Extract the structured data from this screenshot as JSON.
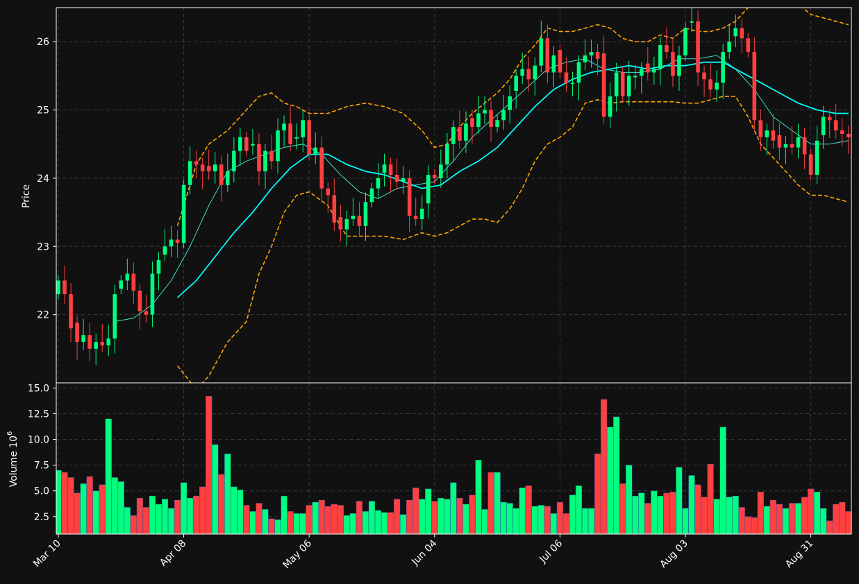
{
  "colors": {
    "background": "#111111",
    "up": "#00ff7f",
    "down": "#ff4040",
    "ma_fast": "#40e0d0",
    "ma_slow": "#00ffff",
    "bands": "#ffa500",
    "grid": "#3a3a3a",
    "frame": "#ffffff"
  },
  "chart_data": [
    {
      "type": "candlestick",
      "ylabel": "Price",
      "ylim": [
        21.0,
        26.5
      ],
      "yticks": [
        22,
        23,
        24,
        25,
        26
      ],
      "x_tick_labels": [
        "Mar 10",
        "Apr 08",
        "May 06",
        "Jun 04",
        "Jul 06",
        "Aug 03",
        "Aug 31"
      ],
      "x_tick_index": [
        0,
        20,
        40,
        60,
        80,
        100,
        120
      ],
      "x_count": 127,
      "grid": true,
      "closes": [
        22.5,
        22.3,
        21.8,
        21.6,
        21.7,
        21.5,
        21.6,
        21.55,
        21.65,
        22.3,
        22.5,
        22.6,
        22.35,
        22.05,
        22.0,
        22.6,
        22.8,
        23.0,
        23.1,
        23.05,
        23.9,
        24.25,
        24.2,
        24.1,
        24.1,
        24.2,
        23.9,
        24.1,
        24.4,
        24.6,
        24.4,
        24.5,
        24.1,
        24.4,
        24.25,
        24.7,
        24.8,
        24.5,
        24.6,
        24.85,
        24.35,
        24.45,
        23.85,
        23.75,
        23.35,
        23.25,
        23.4,
        23.45,
        23.3,
        23.65,
        23.85,
        24.0,
        24.2,
        24.05,
        23.95,
        24.0,
        23.45,
        23.4,
        23.55,
        24.05,
        24.0,
        24.2,
        24.5,
        24.75,
        24.55,
        24.8,
        24.75,
        24.95,
        25.0,
        24.75,
        24.85,
        25.0,
        25.2,
        25.5,
        25.6,
        25.45,
        25.65,
        26.05,
        25.55,
        25.8,
        25.55,
        25.4,
        25.4,
        25.7,
        25.8,
        25.85,
        25.75,
        24.9,
        25.2,
        25.55,
        25.2,
        25.5,
        25.5,
        25.6,
        25.55,
        25.6,
        25.95,
        25.85,
        25.5,
        25.8,
        26.2,
        26.3,
        25.55,
        25.45,
        25.3,
        25.4,
        25.85,
        26.0,
        26.2,
        26.05,
        25.85,
        24.85,
        24.6,
        24.7,
        24.55,
        24.45,
        24.5,
        24.45,
        24.6,
        24.35,
        24.05,
        24.55,
        24.9,
        24.85,
        24.7,
        24.65,
        24.6
      ],
      "bollinger_upper_points": [
        [
          19,
          23.3
        ],
        [
          22,
          24.2
        ],
        [
          24,
          24.5
        ],
        [
          27,
          24.7
        ],
        [
          30,
          25.0
        ],
        [
          32,
          25.2
        ],
        [
          34,
          25.25
        ],
        [
          36,
          25.1
        ],
        [
          38,
          25.05
        ],
        [
          40,
          24.95
        ],
        [
          43,
          24.95
        ],
        [
          46,
          25.05
        ],
        [
          49,
          25.1
        ],
        [
          52,
          25.05
        ],
        [
          55,
          24.95
        ],
        [
          58,
          24.7
        ],
        [
          60,
          24.45
        ],
        [
          62,
          24.5
        ],
        [
          64,
          24.75
        ],
        [
          66,
          24.95
        ],
        [
          68,
          25.1
        ],
        [
          70,
          25.25
        ],
        [
          72,
          25.45
        ],
        [
          74,
          25.75
        ],
        [
          76,
          25.95
        ],
        [
          78,
          26.2
        ],
        [
          80,
          26.15
        ],
        [
          82,
          26.15
        ],
        [
          84,
          26.2
        ],
        [
          86,
          26.25
        ],
        [
          88,
          26.2
        ],
        [
          90,
          26.05
        ],
        [
          92,
          26.0
        ],
        [
          94,
          26.0
        ],
        [
          96,
          26.1
        ],
        [
          98,
          26.05
        ],
        [
          100,
          26.2
        ],
        [
          102,
          26.15
        ],
        [
          104,
          26.15
        ],
        [
          106,
          26.2
        ],
        [
          108,
          26.3
        ],
        [
          110,
          26.5
        ],
        [
          112,
          26.6
        ],
        [
          114,
          26.7
        ],
        [
          116,
          26.7
        ],
        [
          118,
          26.55
        ],
        [
          120,
          26.4
        ],
        [
          122,
          26.35
        ],
        [
          124,
          26.3
        ],
        [
          126,
          26.25
        ]
      ],
      "bollinger_lower_points": [
        [
          19,
          21.25
        ],
        [
          22,
          20.9
        ],
        [
          24,
          21.1
        ],
        [
          27,
          21.6
        ],
        [
          30,
          21.9
        ],
        [
          32,
          22.6
        ],
        [
          34,
          23.0
        ],
        [
          36,
          23.5
        ],
        [
          38,
          23.75
        ],
        [
          40,
          23.8
        ],
        [
          43,
          23.6
        ],
        [
          46,
          23.15
        ],
        [
          49,
          23.15
        ],
        [
          52,
          23.15
        ],
        [
          55,
          23.1
        ],
        [
          58,
          23.2
        ],
        [
          60,
          23.15
        ],
        [
          62,
          23.2
        ],
        [
          64,
          23.3
        ],
        [
          66,
          23.4
        ],
        [
          68,
          23.4
        ],
        [
          70,
          23.35
        ],
        [
          72,
          23.55
        ],
        [
          74,
          23.85
        ],
        [
          76,
          24.25
        ],
        [
          78,
          24.5
        ],
        [
          80,
          24.6
        ],
        [
          82,
          24.75
        ],
        [
          84,
          25.1
        ],
        [
          86,
          25.15
        ],
        [
          88,
          25.1
        ],
        [
          90,
          25.12
        ],
        [
          92,
          25.12
        ],
        [
          94,
          25.12
        ],
        [
          96,
          25.12
        ],
        [
          98,
          25.12
        ],
        [
          100,
          25.1
        ],
        [
          102,
          25.1
        ],
        [
          104,
          25.15
        ],
        [
          106,
          25.2
        ],
        [
          108,
          25.2
        ],
        [
          110,
          24.9
        ],
        [
          112,
          24.5
        ],
        [
          114,
          24.3
        ],
        [
          116,
          24.1
        ],
        [
          118,
          23.9
        ],
        [
          120,
          23.75
        ],
        [
          122,
          23.75
        ],
        [
          124,
          23.7
        ],
        [
          126,
          23.65
        ]
      ],
      "ma_slow_points": [
        [
          19,
          22.25
        ],
        [
          22,
          22.5
        ],
        [
          25,
          22.85
        ],
        [
          28,
          23.2
        ],
        [
          31,
          23.5
        ],
        [
          34,
          23.85
        ],
        [
          37,
          24.15
        ],
        [
          40,
          24.35
        ],
        [
          43,
          24.35
        ],
        [
          46,
          24.2
        ],
        [
          49,
          24.1
        ],
        [
          52,
          24.05
        ],
        [
          55,
          23.95
        ],
        [
          58,
          23.85
        ],
        [
          61,
          23.9
        ],
        [
          64,
          24.1
        ],
        [
          67,
          24.25
        ],
        [
          70,
          24.45
        ],
        [
          73,
          24.75
        ],
        [
          76,
          25.05
        ],
        [
          79,
          25.3
        ],
        [
          82,
          25.45
        ],
        [
          85,
          25.55
        ],
        [
          88,
          25.6
        ],
        [
          91,
          25.65
        ],
        [
          94,
          25.6
        ],
        [
          97,
          25.65
        ],
        [
          100,
          25.65
        ],
        [
          103,
          25.7
        ],
        [
          106,
          25.7
        ],
        [
          109,
          25.55
        ],
        [
          112,
          25.4
        ],
        [
          115,
          25.25
        ],
        [
          118,
          25.1
        ],
        [
          121,
          25.0
        ],
        [
          124,
          24.95
        ],
        [
          126,
          24.95
        ]
      ],
      "ma_fast_points": [
        [
          9,
          21.9
        ],
        [
          12,
          21.95
        ],
        [
          15,
          22.15
        ],
        [
          18,
          22.5
        ],
        [
          21,
          23.0
        ],
        [
          24,
          23.6
        ],
        [
          27,
          24.1
        ],
        [
          30,
          24.25
        ],
        [
          33,
          24.35
        ],
        [
          36,
          24.45
        ],
        [
          39,
          24.5
        ],
        [
          42,
          24.35
        ],
        [
          45,
          24.05
        ],
        [
          48,
          23.8
        ],
        [
          51,
          23.7
        ],
        [
          54,
          23.85
        ],
        [
          57,
          23.9
        ],
        [
          60,
          23.95
        ],
        [
          63,
          24.25
        ],
        [
          66,
          24.6
        ],
        [
          69,
          24.85
        ],
        [
          72,
          25.1
        ],
        [
          75,
          25.35
        ],
        [
          78,
          25.6
        ],
        [
          81,
          25.7
        ],
        [
          84,
          25.75
        ],
        [
          87,
          25.6
        ],
        [
          90,
          25.55
        ],
        [
          93,
          25.55
        ],
        [
          96,
          25.6
        ],
        [
          99,
          25.75
        ],
        [
          102,
          25.75
        ],
        [
          105,
          25.8
        ],
        [
          108,
          25.6
        ],
        [
          111,
          25.3
        ],
        [
          114,
          24.9
        ],
        [
          117,
          24.7
        ],
        [
          120,
          24.5
        ],
        [
          123,
          24.5
        ],
        [
          126,
          24.55
        ]
      ]
    },
    {
      "type": "bar",
      "ylabel": "Volume",
      "ylabel_multiplier": "10",
      "ylabel_exponent": "6",
      "ylim": [
        0.8,
        15.5
      ],
      "yticks": [
        "2.5",
        "5.0",
        "7.5",
        "10.0",
        "12.5",
        "15.0"
      ],
      "values": [
        7.0,
        6.8,
        6.3,
        4.8,
        5.7,
        6.4,
        5.0,
        5.6,
        12.0,
        6.3,
        5.9,
        3.4,
        2.6,
        4.3,
        3.4,
        4.5,
        3.7,
        4.2,
        3.3,
        4.1,
        5.8,
        4.3,
        4.5,
        5.4,
        14.2,
        9.5,
        6.6,
        8.6,
        5.4,
        5.1,
        3.6,
        3.0,
        3.8,
        3.2,
        2.3,
        2.2,
        4.5,
        3.0,
        2.8,
        2.8,
        3.6,
        3.9,
        4.1,
        3.5,
        3.7,
        3.6,
        2.6,
        2.8,
        4.0,
        3.0,
        4.0,
        3.1,
        2.9,
        2.9,
        4.2,
        2.7,
        4.1,
        5.3,
        4.2,
        5.2,
        4.0,
        4.3,
        4.2,
        5.8,
        4.3,
        3.7,
        4.6,
        8.0,
        3.2,
        6.8,
        6.8,
        3.9,
        3.8,
        3.3,
        5.3,
        5.5,
        3.5,
        3.6,
        3.5,
        2.8,
        3.9,
        2.8,
        4.6,
        5.5,
        3.3,
        3.3,
        8.6,
        13.9,
        11.2,
        12.2,
        5.7,
        7.5,
        4.5,
        4.8,
        3.8,
        5.0,
        4.5,
        4.8,
        4.9,
        7.3,
        3.3,
        6.5,
        5.6,
        4.4,
        7.6,
        4.2,
        11.2,
        4.4,
        4.5,
        3.4,
        2.5,
        2.4,
        4.9,
        3.5,
        4.1,
        3.7,
        3.3,
        3.8,
        3.8,
        4.4,
        5.2,
        4.9,
        3.3,
        2.1,
        3.7,
        3.9,
        3.0
      ]
    }
  ]
}
